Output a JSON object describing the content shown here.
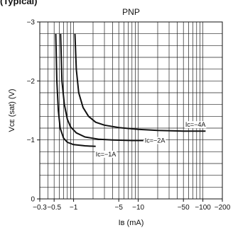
{
  "header_fragment": "(Typical)",
  "chart_data": {
    "type": "line",
    "title": "PNP",
    "xlabel": "Iʙ (mA)",
    "ylabel": "Vᴄᴇ (sat) (V)",
    "x_scale": "log",
    "x_abs_range": [
      0.3,
      200
    ],
    "xlim": [
      -0.3,
      -200
    ],
    "ylim": [
      0,
      -3
    ],
    "x_ticks": [
      {
        "value": 0.3,
        "label": "−0.3"
      },
      {
        "value": 0.5,
        "label": "−0.5"
      },
      {
        "value": 1,
        "label": "−1"
      },
      {
        "value": 5,
        "label": "−5"
      },
      {
        "value": 10,
        "label": "−10"
      },
      {
        "value": 50,
        "label": "−50"
      },
      {
        "value": 100,
        "label": "−100"
      },
      {
        "value": 200,
        "label": "−200"
      }
    ],
    "x_grid": [
      0.3,
      0.4,
      0.5,
      0.6,
      0.7,
      0.8,
      0.9,
      1,
      2,
      3,
      4,
      5,
      6,
      7,
      8,
      9,
      10,
      20,
      30,
      40,
      50,
      60,
      70,
      80,
      90,
      100,
      200
    ],
    "y_ticks": [
      {
        "value": 0,
        "label": "0"
      },
      {
        "value": -1,
        "label": "−1"
      },
      {
        "value": -2,
        "label": "−2"
      },
      {
        "value": -3,
        "label": "−3"
      }
    ],
    "y_grid_step": 0.2,
    "grid": true,
    "series": [
      {
        "name": "Ic=−1A",
        "points": [
          [
            0.53,
            -2.8
          ],
          [
            0.55,
            -2.0
          ],
          [
            0.58,
            -1.5
          ],
          [
            0.62,
            -1.2
          ],
          [
            0.7,
            -1.03
          ],
          [
            0.8,
            -0.96
          ],
          [
            1.0,
            -0.92
          ],
          [
            1.5,
            -0.9
          ],
          [
            2.2,
            -0.89
          ]
        ]
      },
      {
        "name": "Ic=−2A",
        "points": [
          [
            0.63,
            -2.8
          ],
          [
            0.66,
            -2.0
          ],
          [
            0.72,
            -1.6
          ],
          [
            0.8,
            -1.35
          ],
          [
            0.9,
            -1.22
          ],
          [
            1.1,
            -1.12
          ],
          [
            1.5,
            -1.05
          ],
          [
            2.5,
            -1.01
          ],
          [
            4,
            -1.0
          ],
          [
            8,
            -0.99
          ],
          [
            12,
            -0.99
          ]
        ]
      },
      {
        "name": "Ic=−4A",
        "points": [
          [
            1.05,
            -2.8
          ],
          [
            1.1,
            -2.2
          ],
          [
            1.2,
            -1.8
          ],
          [
            1.4,
            -1.55
          ],
          [
            1.7,
            -1.4
          ],
          [
            2.2,
            -1.3
          ],
          [
            3,
            -1.25
          ],
          [
            5,
            -1.21
          ],
          [
            10,
            -1.18
          ],
          [
            20,
            -1.16
          ],
          [
            50,
            -1.15
          ],
          [
            100,
            -1.15
          ],
          [
            110,
            -1.15
          ]
        ]
      }
    ],
    "annotations": [
      {
        "text": "Ic=−1A",
        "series": 0
      },
      {
        "text": "Ic=−2A",
        "series": 1
      },
      {
        "text": "Ic=−4A",
        "series": 2
      }
    ]
  }
}
